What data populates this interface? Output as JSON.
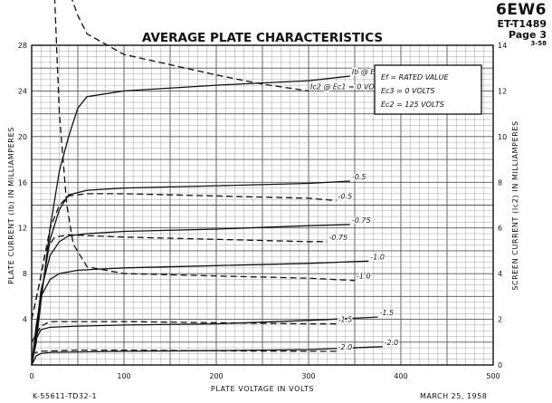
{
  "header": {
    "tube_type": "6EW6",
    "doc_number": "ET-T1489",
    "page": "Page 3",
    "date_code": "3-58"
  },
  "footer": {
    "drawing_number": "K-55611-TD32-1",
    "date": "MARCH 25, 1958"
  },
  "chart_data": {
    "type": "line",
    "title": "AVERAGE PLATE CHARACTERISTICS",
    "xlabel": "PLATE VOLTAGE IN VOLTS",
    "ylabel": "PLATE CURRENT (Ib) IN MILLIAMPERES",
    "y2label": "SCREEN CURRENT (Ic2) IN MILLIAMPERES",
    "xlim": [
      0,
      500
    ],
    "ylim": [
      0,
      28
    ],
    "y2lim": [
      0,
      14
    ],
    "xticks": [
      0,
      100,
      200,
      300,
      400,
      500
    ],
    "yticks": [
      4,
      8,
      12,
      16,
      20,
      24,
      28
    ],
    "y2ticks": [
      0,
      2,
      4,
      6,
      8,
      10,
      12,
      14
    ],
    "grid": true,
    "conditions": [
      "Ef = RATED VALUE",
      "Ec3 = 0 VOLTS",
      "Ec2 = 125 VOLTS"
    ],
    "plate_curves": [
      {
        "label": "Ib @ Ec1 = 0 VOLTS",
        "points": [
          [
            0,
            0
          ],
          [
            5,
            2
          ],
          [
            10,
            5.5
          ],
          [
            20,
            12
          ],
          [
            30,
            17
          ],
          [
            40,
            20
          ],
          [
            50,
            22.5
          ],
          [
            60,
            23.5
          ],
          [
            100,
            24
          ],
          [
            200,
            24.5
          ],
          [
            300,
            24.9
          ],
          [
            345,
            25.3
          ]
        ]
      },
      {
        "label": "-0.5",
        "points": [
          [
            0,
            0
          ],
          [
            5,
            2.5
          ],
          [
            10,
            6
          ],
          [
            20,
            11
          ],
          [
            30,
            13.6
          ],
          [
            40,
            14.9
          ],
          [
            60,
            15.3
          ],
          [
            100,
            15.5
          ],
          [
            200,
            15.7
          ],
          [
            300,
            15.9
          ],
          [
            345,
            16.1
          ]
        ]
      },
      {
        "label": "-0.75",
        "points": [
          [
            0,
            0
          ],
          [
            5,
            3
          ],
          [
            10,
            6.5
          ],
          [
            20,
            9.6
          ],
          [
            30,
            10.8
          ],
          [
            40,
            11.3
          ],
          [
            60,
            11.5
          ],
          [
            100,
            11.7
          ],
          [
            200,
            11.9
          ],
          [
            300,
            12.2
          ],
          [
            345,
            12.3
          ]
        ]
      },
      {
        "label": "-1.0",
        "points": [
          [
            0,
            0
          ],
          [
            5,
            3.5
          ],
          [
            10,
            6
          ],
          [
            20,
            7.5
          ],
          [
            30,
            8
          ],
          [
            50,
            8.3
          ],
          [
            100,
            8.5
          ],
          [
            200,
            8.7
          ],
          [
            300,
            8.9
          ],
          [
            365,
            9.1
          ]
        ]
      },
      {
        "label": "-1.5",
        "points": [
          [
            0,
            0
          ],
          [
            5,
            2.3
          ],
          [
            10,
            3.1
          ],
          [
            20,
            3.3
          ],
          [
            50,
            3.4
          ],
          [
            100,
            3.5
          ],
          [
            200,
            3.6
          ],
          [
            300,
            3.9
          ],
          [
            375,
            4.2
          ]
        ]
      },
      {
        "label": "-2.0",
        "points": [
          [
            0,
            0
          ],
          [
            5,
            0.8
          ],
          [
            10,
            1
          ],
          [
            20,
            1.1
          ],
          [
            100,
            1.2
          ],
          [
            200,
            1.25
          ],
          [
            300,
            1.35
          ],
          [
            380,
            1.6
          ]
        ]
      }
    ],
    "screen_curves": [
      {
        "label": "Ic2 @ Ec1 = 0 VOLTS",
        "points": [
          [
            16,
            27
          ],
          [
            20,
            24
          ],
          [
            25,
            21
          ],
          [
            30,
            18.5
          ],
          [
            35,
            17
          ],
          [
            50,
            15.3
          ],
          [
            60,
            14.5
          ],
          [
            100,
            13.6
          ],
          [
            200,
            12.7
          ],
          [
            250,
            12.3
          ],
          [
            300,
            12
          ]
        ]
      },
      {
        "label": "-0.5",
        "points": [
          [
            0,
            2
          ],
          [
            8,
            3.5
          ],
          [
            20,
            6
          ],
          [
            30,
            7
          ],
          [
            40,
            7.4
          ],
          [
            60,
            7.5
          ],
          [
            100,
            7.5
          ],
          [
            200,
            7.4
          ],
          [
            300,
            7.3
          ],
          [
            330,
            7.2
          ]
        ]
      },
      {
        "label": "-0.75",
        "points": [
          [
            0,
            2
          ],
          [
            8,
            3.5
          ],
          [
            15,
            5
          ],
          [
            25,
            5.6
          ],
          [
            40,
            5.7
          ],
          [
            100,
            5.6
          ],
          [
            200,
            5.5
          ],
          [
            300,
            5.4
          ],
          [
            320,
            5.4
          ]
        ]
      },
      {
        "label": "-1.0",
        "points": [
          [
            16,
            27
          ],
          [
            22,
            19
          ],
          [
            30,
            11
          ],
          [
            38,
            7
          ],
          [
            45,
            5.3
          ],
          [
            60,
            4.3
          ],
          [
            100,
            4
          ],
          [
            200,
            3.9
          ],
          [
            300,
            3.8
          ],
          [
            350,
            3.7
          ]
        ]
      },
      {
        "label": "-1.5",
        "points": [
          [
            0,
            1
          ],
          [
            10,
            1.7
          ],
          [
            20,
            1.9
          ],
          [
            50,
            1.9
          ],
          [
            100,
            1.9
          ],
          [
            200,
            1.85
          ],
          [
            300,
            1.8
          ],
          [
            330,
            1.8
          ]
        ]
      },
      {
        "label": "-2.0",
        "points": [
          [
            0,
            0.5
          ],
          [
            10,
            0.6
          ],
          [
            50,
            0.65
          ],
          [
            100,
            0.65
          ],
          [
            200,
            0.62
          ],
          [
            300,
            0.6
          ],
          [
            330,
            0.6
          ]
        ]
      }
    ]
  }
}
